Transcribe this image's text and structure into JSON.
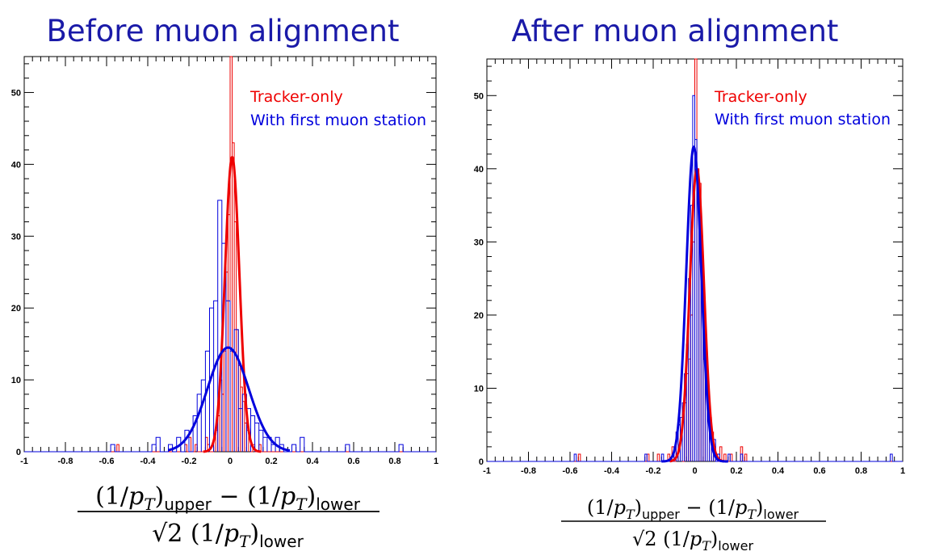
{
  "colors": {
    "tracker": "#ee0000",
    "muon": "#0000dd",
    "title": "#1a1aa8"
  },
  "axis_label": {
    "numerator_left": "(1/",
    "p": "p",
    "T": "T",
    "close": ")",
    "upper": "upper",
    "minus": " − (1/",
    "lower": "lower",
    "sqrt2": "√2",
    "denominator_open": " (1/"
  },
  "chart_data": [
    {
      "type": "histogram",
      "title": "Before muon alignment",
      "xlim": [
        -1,
        1
      ],
      "ylim": [
        0,
        55
      ],
      "xticks": [
        "-1",
        "-0.8",
        "-0.6",
        "-0.4",
        "-0.2",
        "0",
        "0.2",
        "0.4",
        "0.6",
        "0.8",
        "1"
      ],
      "yticks": [
        "0",
        "10",
        "20",
        "30",
        "40",
        "50"
      ],
      "legend": [
        "Tracker-only",
        "With first muon station"
      ],
      "legend_position": "top-right",
      "series": [
        {
          "name": "Tracker-only",
          "color": "#ee0000",
          "bin_width": 0.01,
          "bins": [
            [
              -0.55,
              1
            ],
            [
              -0.22,
              1
            ],
            [
              -0.2,
              2
            ],
            [
              -0.17,
              1
            ],
            [
              -0.12,
              2
            ],
            [
              -0.11,
              1
            ],
            [
              -0.08,
              2
            ],
            [
              -0.07,
              3
            ],
            [
              -0.06,
              5
            ],
            [
              -0.05,
              10
            ],
            [
              -0.04,
              8
            ],
            [
              -0.03,
              14
            ],
            [
              -0.02,
              25
            ],
            [
              -0.01,
              33
            ],
            [
              0.0,
              55
            ],
            [
              0.01,
              43
            ],
            [
              0.02,
              32
            ],
            [
              0.03,
              17
            ],
            [
              0.04,
              12
            ],
            [
              0.05,
              9
            ],
            [
              0.06,
              7
            ],
            [
              0.07,
              4
            ],
            [
              0.08,
              3
            ],
            [
              0.09,
              2
            ],
            [
              0.11,
              1
            ],
            [
              0.14,
              1
            ]
          ],
          "fit": {
            "amplitude": 41,
            "mean": 0.01,
            "sigma": 0.035,
            "range": [
              -0.13,
              0.15
            ]
          }
        },
        {
          "name": "With first muon station",
          "color": "#0000dd",
          "bin_width": 0.02,
          "bins": [
            [
              -0.58,
              1
            ],
            [
              -0.38,
              1
            ],
            [
              -0.36,
              2
            ],
            [
              -0.3,
              1
            ],
            [
              -0.26,
              2
            ],
            [
              -0.22,
              3
            ],
            [
              -0.18,
              5
            ],
            [
              -0.16,
              8
            ],
            [
              -0.14,
              10
            ],
            [
              -0.12,
              14
            ],
            [
              -0.1,
              20
            ],
            [
              -0.08,
              21
            ],
            [
              -0.06,
              35
            ],
            [
              -0.04,
              29
            ],
            [
              -0.02,
              21
            ],
            [
              0.0,
              14
            ],
            [
              0.02,
              17
            ],
            [
              0.04,
              6
            ],
            [
              0.06,
              8
            ],
            [
              0.08,
              6
            ],
            [
              0.1,
              5
            ],
            [
              0.12,
              4
            ],
            [
              0.14,
              3
            ],
            [
              0.16,
              2
            ],
            [
              0.18,
              2
            ],
            [
              0.2,
              1
            ],
            [
              0.22,
              2
            ],
            [
              0.24,
              1
            ],
            [
              0.3,
              1
            ],
            [
              0.34,
              2
            ],
            [
              0.56,
              1
            ],
            [
              0.82,
              1
            ]
          ],
          "fit": {
            "amplitude": 14.5,
            "mean": -0.01,
            "sigma": 0.1,
            "range": [
              -0.3,
              0.29
            ]
          }
        }
      ]
    },
    {
      "type": "histogram",
      "title": "After muon alignment",
      "xlim": [
        -1,
        1
      ],
      "ylim": [
        0,
        55
      ],
      "xticks": [
        "-1",
        "-0.8",
        "-0.6",
        "-0.4",
        "-0.2",
        "0",
        "0.2",
        "0.4",
        "0.6",
        "0.8",
        "1"
      ],
      "yticks": [
        "0",
        "10",
        "20",
        "30",
        "40",
        "50"
      ],
      "legend": [
        "Tracker-only",
        "With first muon station"
      ],
      "legend_position": "top-right",
      "series": [
        {
          "name": "Tracker-only",
          "color": "#ee0000",
          "bin_width": 0.01,
          "bins": [
            [
              -0.56,
              1
            ],
            [
              -0.23,
              1
            ],
            [
              -0.18,
              1
            ],
            [
              -0.13,
              1
            ],
            [
              -0.11,
              2
            ],
            [
              -0.09,
              4
            ],
            [
              -0.08,
              5
            ],
            [
              -0.07,
              4
            ],
            [
              -0.05,
              8
            ],
            [
              -0.04,
              12
            ],
            [
              -0.03,
              14
            ],
            [
              -0.02,
              20
            ],
            [
              -0.01,
              30
            ],
            [
              0.0,
              55
            ],
            [
              0.01,
              40
            ],
            [
              0.02,
              38
            ],
            [
              0.03,
              28
            ],
            [
              0.04,
              18
            ],
            [
              0.05,
              10
            ],
            [
              0.06,
              8
            ],
            [
              0.07,
              6
            ],
            [
              0.08,
              4
            ],
            [
              0.09,
              2
            ],
            [
              0.12,
              2
            ],
            [
              0.14,
              1
            ],
            [
              0.17,
              1
            ],
            [
              0.22,
              2
            ],
            [
              0.24,
              1
            ]
          ],
          "fit": {
            "amplitude": 40,
            "mean": 0.01,
            "sigma": 0.034,
            "range": [
              -0.12,
              0.14
            ]
          }
        },
        {
          "name": "With first muon station",
          "color": "#0000dd",
          "bin_width": 0.01,
          "bins": [
            [
              -0.58,
              1
            ],
            [
              -0.24,
              1
            ],
            [
              -0.16,
              1
            ],
            [
              -0.1,
              2
            ],
            [
              -0.09,
              4
            ],
            [
              -0.08,
              5
            ],
            [
              -0.07,
              6
            ],
            [
              -0.06,
              8
            ],
            [
              -0.05,
              12
            ],
            [
              -0.04,
              16
            ],
            [
              -0.03,
              25
            ],
            [
              -0.02,
              35
            ],
            [
              -0.01,
              50
            ],
            [
              0.0,
              44
            ],
            [
              0.01,
              38
            ],
            [
              0.02,
              30
            ],
            [
              0.03,
              22
            ],
            [
              0.04,
              14
            ],
            [
              0.05,
              10
            ],
            [
              0.06,
              6
            ],
            [
              0.07,
              4
            ],
            [
              0.08,
              2
            ],
            [
              0.09,
              3
            ],
            [
              0.11,
              1
            ],
            [
              0.16,
              1
            ],
            [
              0.22,
              1
            ],
            [
              0.94,
              1
            ]
          ],
          "fit": {
            "amplitude": 43,
            "mean": -0.005,
            "sigma": 0.036,
            "range": [
              -0.16,
              0.16
            ]
          }
        }
      ]
    }
  ]
}
